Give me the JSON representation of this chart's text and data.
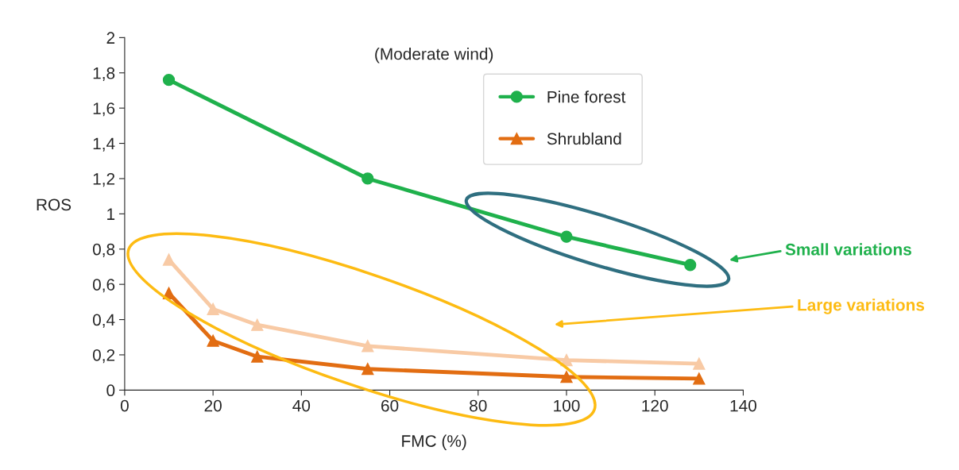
{
  "chart_data": {
    "type": "line",
    "title": "(Moderate wind)",
    "xlabel": "FMC (%)",
    "ylabel": "ROS",
    "series": [
      {
        "name": "Pine forest",
        "color": "#1fb14c",
        "marker": "circle",
        "x": [
          10,
          55,
          100,
          128
        ],
        "values": [
          1.76,
          1.2,
          0.87,
          0.71
        ]
      },
      {
        "color": "#f8caa5",
        "marker": "triangle",
        "x": [
          10,
          20,
          30,
          55,
          100,
          130
        ],
        "values": [
          0.74,
          0.46,
          0.37,
          0.25,
          0.17,
          0.15
        ]
      },
      {
        "name": "Shrubland",
        "color": "#e26d12",
        "marker": "triangle",
        "x": [
          10,
          20,
          30,
          55,
          100,
          130
        ],
        "values": [
          0.55,
          0.28,
          0.19,
          0.12,
          0.075,
          0.065
        ]
      }
    ],
    "xlim": [
      0,
      140
    ],
    "xticks": [
      0,
      20,
      40,
      60,
      80,
      100,
      120,
      140
    ],
    "ylim": [
      0,
      2
    ],
    "yticks": [
      0,
      {
        "value": 0.2,
        "label": "0,2"
      },
      {
        "value": 0.4,
        "label": "0,4"
      },
      {
        "value": 0.6,
        "label": "0,6"
      },
      {
        "value": 0.8,
        "label": "0,8"
      },
      1,
      {
        "value": 1.2,
        "label": "1,2"
      },
      {
        "value": 1.4,
        "label": "1,4"
      },
      {
        "value": 1.6,
        "label": "1,6"
      },
      {
        "value": 1.8,
        "label": "1,8"
      },
      2
    ],
    "grid": false,
    "legend": "top right",
    "line_style": "solid",
    "annotations": [
      "Small variations",
      "Large variations"
    ]
  }
}
